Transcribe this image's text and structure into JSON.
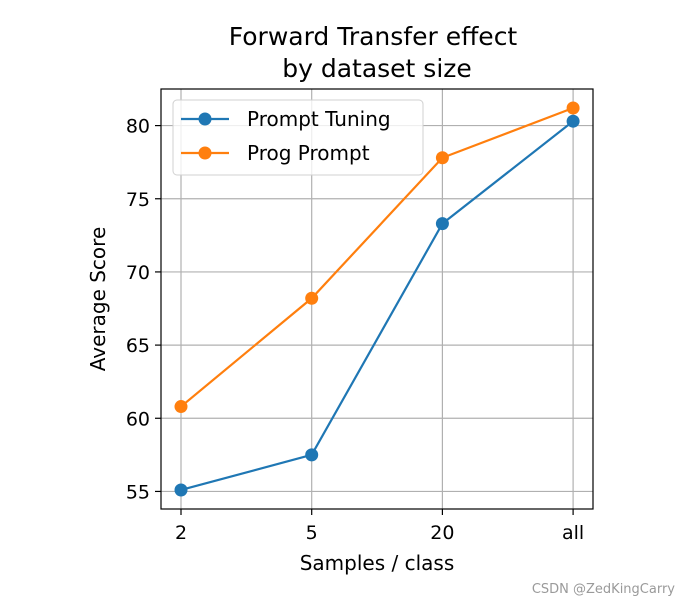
{
  "chart_data": {
    "type": "line",
    "title": "Forward Transfer effect\nby dataset size",
    "xlabel": "Samples / class",
    "ylabel": "Average Score",
    "categories": [
      "2",
      "5",
      "20",
      "all"
    ],
    "ylim": [
      53.8,
      82.5
    ],
    "yticks": [
      55,
      60,
      65,
      70,
      75,
      80
    ],
    "grid": true,
    "legend": "top-left",
    "series": [
      {
        "name": "Prompt Tuning",
        "color": "#1f77b4",
        "marker": "circle",
        "values": [
          55.1,
          57.5,
          73.3,
          80.3
        ]
      },
      {
        "name": "Prog Prompt",
        "color": "#ff7f0e",
        "marker": "circle",
        "values": [
          60.8,
          68.2,
          77.8,
          81.2
        ]
      }
    ]
  },
  "watermark": "CSDN @ZedKingCarry"
}
